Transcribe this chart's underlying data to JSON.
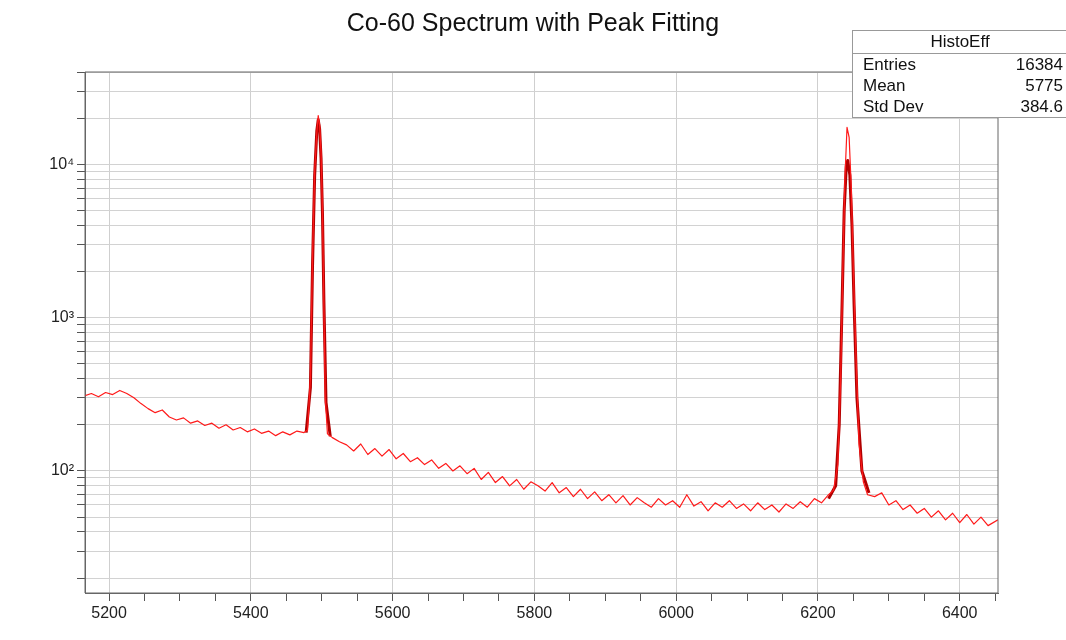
{
  "chart_data": {
    "type": "line",
    "title": "Co-60 Spectrum with Peak Fitting",
    "annotations": [
      "HistoEff",
      "Entries",
      "16384",
      "Mean",
      "5775",
      "Std Dev",
      "384.6"
    ],
    "log": "y",
    "grid": true,
    "legend": false,
    "marker": "none",
    "line_style": "solid",
    "xlim": [
      5166,
      6454
    ],
    "xticks": [
      5200,
      {
        "value": 5250,
        "label": null
      },
      {
        "value": 5300,
        "label": null
      },
      {
        "value": 5350,
        "label": null
      },
      5400,
      {
        "value": 5450,
        "label": null
      },
      {
        "value": 5500,
        "label": null
      },
      {
        "value": 5550,
        "label": null
      },
      5600,
      {
        "value": 5650,
        "label": null
      },
      {
        "value": 5700,
        "label": null
      },
      {
        "value": 5750,
        "label": null
      },
      5800,
      {
        "value": 5850,
        "label": null
      },
      {
        "value": 5900,
        "label": null
      },
      {
        "value": 5950,
        "label": null
      },
      6000,
      {
        "value": 6050,
        "label": null
      },
      {
        "value": 6100,
        "label": null
      },
      {
        "value": 6150,
        "label": null
      },
      6200,
      {
        "value": 6250,
        "label": null
      },
      {
        "value": 6300,
        "label": null
      },
      {
        "value": 6350,
        "label": null
      },
      6400,
      {
        "value": 6450,
        "label": null
      }
    ],
    "ylim": [
      16,
      40000
    ],
    "yticks": [
      {
        "value": 20,
        "label": null
      },
      {
        "value": 30,
        "label": null
      },
      {
        "value": 40,
        "label": null
      },
      {
        "value": 50,
        "label": null
      },
      {
        "value": 60,
        "label": null
      },
      {
        "value": 70,
        "label": null
      },
      {
        "value": 80,
        "label": null
      },
      {
        "value": 90,
        "label": null
      },
      {
        "value": 100,
        "label": "10²"
      },
      {
        "value": 200,
        "label": null
      },
      {
        "value": 300,
        "label": null
      },
      {
        "value": 400,
        "label": null
      },
      {
        "value": 500,
        "label": null
      },
      {
        "value": 600,
        "label": null
      },
      {
        "value": 700,
        "label": null
      },
      {
        "value": 800,
        "label": null
      },
      {
        "value": 900,
        "label": null
      },
      {
        "value": 1000,
        "label": "10³"
      },
      {
        "value": 2000,
        "label": null
      },
      {
        "value": 3000,
        "label": null
      },
      {
        "value": 4000,
        "label": null
      },
      {
        "value": 5000,
        "label": null
      },
      {
        "value": 6000,
        "label": null
      },
      {
        "value": 7000,
        "label": null
      },
      {
        "value": 8000,
        "label": null
      },
      {
        "value": 9000,
        "label": null
      },
      {
        "value": 10000,
        "label": "10⁴"
      },
      {
        "value": 20000,
        "label": null
      },
      {
        "value": 30000,
        "label": null
      },
      {
        "value": 40000,
        "label": null
      }
    ],
    "series": [
      {
        "color": "#ff1a1a",
        "x": [
          5166,
          5175,
          5185,
          5195,
          5205,
          5215,
          5225,
          5235,
          5245,
          5255,
          5265,
          5275,
          5285,
          5295,
          5305,
          5315,
          5325,
          5335,
          5345,
          5355,
          5365,
          5375,
          5385,
          5395,
          5405,
          5415,
          5425,
          5435,
          5445,
          5455,
          5465,
          5475,
          5480,
          5484,
          5487,
          5490,
          5493,
          5495,
          5497,
          5499,
          5501,
          5503,
          5505,
          5508,
          5515,
          5525,
          5535,
          5545,
          5555,
          5565,
          5575,
          5585,
          5595,
          5605,
          5615,
          5625,
          5635,
          5645,
          5655,
          5665,
          5675,
          5685,
          5695,
          5705,
          5715,
          5725,
          5735,
          5745,
          5755,
          5765,
          5775,
          5785,
          5795,
          5805,
          5815,
          5825,
          5835,
          5845,
          5855,
          5865,
          5875,
          5885,
          5895,
          5905,
          5915,
          5925,
          5935,
          5945,
          5955,
          5965,
          5975,
          5985,
          5995,
          6005,
          6015,
          6025,
          6035,
          6045,
          6055,
          6065,
          6075,
          6085,
          6095,
          6105,
          6115,
          6125,
          6135,
          6145,
          6155,
          6165,
          6175,
          6185,
          6195,
          6205,
          6215,
          6222,
          6228,
          6232,
          6235,
          6238,
          6241,
          6244,
          6247,
          6250,
          6254,
          6258,
          6264,
          6270,
          6280,
          6290,
          6300,
          6310,
          6320,
          6330,
          6340,
          6350,
          6360,
          6370,
          6380,
          6390,
          6400,
          6410,
          6420,
          6430,
          6440,
          6454
        ],
        "values": [
          310,
          320,
          305,
          325,
          315,
          335,
          320,
          300,
          275,
          255,
          240,
          250,
          225,
          215,
          222,
          205,
          212,
          198,
          205,
          190,
          200,
          185,
          192,
          180,
          188,
          176,
          182,
          170,
          180,
          172,
          182,
          178,
          185,
          400,
          2500,
          9000,
          16000,
          20800,
          18000,
          12000,
          5000,
          1200,
          300,
          175,
          165,
          155,
          148,
          135,
          150,
          128,
          140,
          125,
          138,
          120,
          130,
          115,
          122,
          110,
          118,
          104,
          112,
          100,
          108,
          96,
          104,
          88,
          98,
          84,
          92,
          80,
          88,
          76,
          85,
          80,
          74,
          84,
          72,
          78,
          68,
          76,
          66,
          73,
          64,
          70,
          62,
          69,
          60,
          67,
          62,
          58,
          66,
          60,
          64,
          58,
          70,
          59,
          63,
          55,
          62,
          58,
          64,
          57,
          61,
          55,
          62,
          56,
          60,
          54,
          61,
          57,
          63,
          58,
          66,
          62,
          70,
          75,
          110,
          400,
          2000,
          8000,
          17400,
          15000,
          7000,
          2000,
          500,
          150,
          85,
          70,
          68,
          72,
          60,
          64,
          56,
          60,
          53,
          57,
          50,
          55,
          48,
          53,
          46,
          52,
          45,
          50,
          44,
          48
        ]
      },
      {
        "color": "#b00000",
        "x": [
          5478,
          5484,
          5487,
          5490,
          5493,
          5495,
          5497,
          5499,
          5501,
          5503,
          5506,
          5512
        ],
        "values": [
          178,
          350,
          2200,
          8500,
          16500,
          19500,
          17000,
          11000,
          4800,
          1300,
          280,
          168
        ]
      },
      {
        "color": "#b00000",
        "x": [
          6215,
          6225,
          6230,
          6234,
          6237,
          6240,
          6242,
          6245,
          6248,
          6251,
          6255,
          6262,
          6272
        ],
        "values": [
          66,
          80,
          200,
          1200,
          5000,
          9800,
          10600,
          8500,
          4000,
          1200,
          300,
          100,
          72
        ]
      }
    ]
  }
}
